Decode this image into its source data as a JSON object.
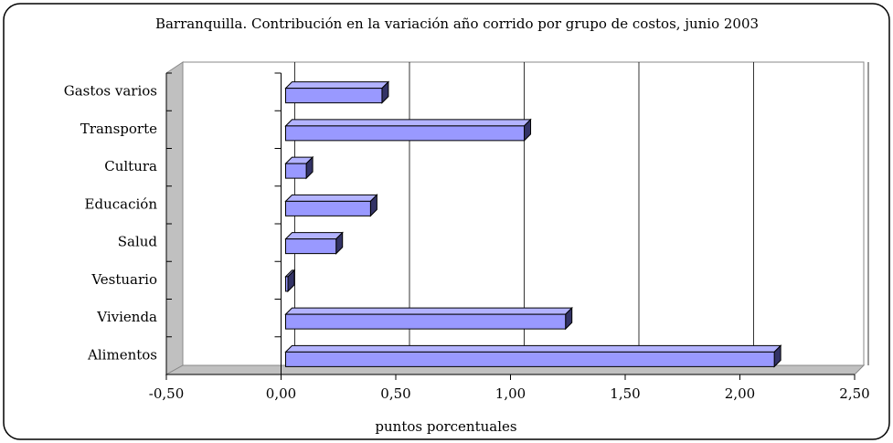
{
  "chart_data": {
    "type": "bar",
    "orientation": "horizontal",
    "title": "Barranquilla. Contribución en la variación año corrido por grupo de costos, junio 2003",
    "x_label": "puntos porcentuales",
    "categories": [
      "Alimentos",
      "Vivienda",
      "Vestuario",
      "Salud",
      "Educación",
      "Cultura",
      "Transporte",
      "Gastos varios"
    ],
    "values": [
      2.13,
      1.22,
      0.01,
      0.22,
      0.37,
      0.09,
      1.04,
      0.42
    ],
    "color": "#9999ff",
    "xlim": [
      -0.5,
      2.5
    ],
    "xticks": [
      {
        "value": -0.5,
        "label": "-0,50"
      },
      {
        "value": 0,
        "label": "0,00"
      },
      {
        "value": 0.5,
        "label": "0,50"
      },
      {
        "value": 1,
        "label": "1,00"
      },
      {
        "value": 1.5,
        "label": "1,50"
      },
      {
        "value": 2,
        "label": "2,00"
      },
      {
        "value": 2.5,
        "label": "2,50"
      }
    ],
    "grid": true
  }
}
